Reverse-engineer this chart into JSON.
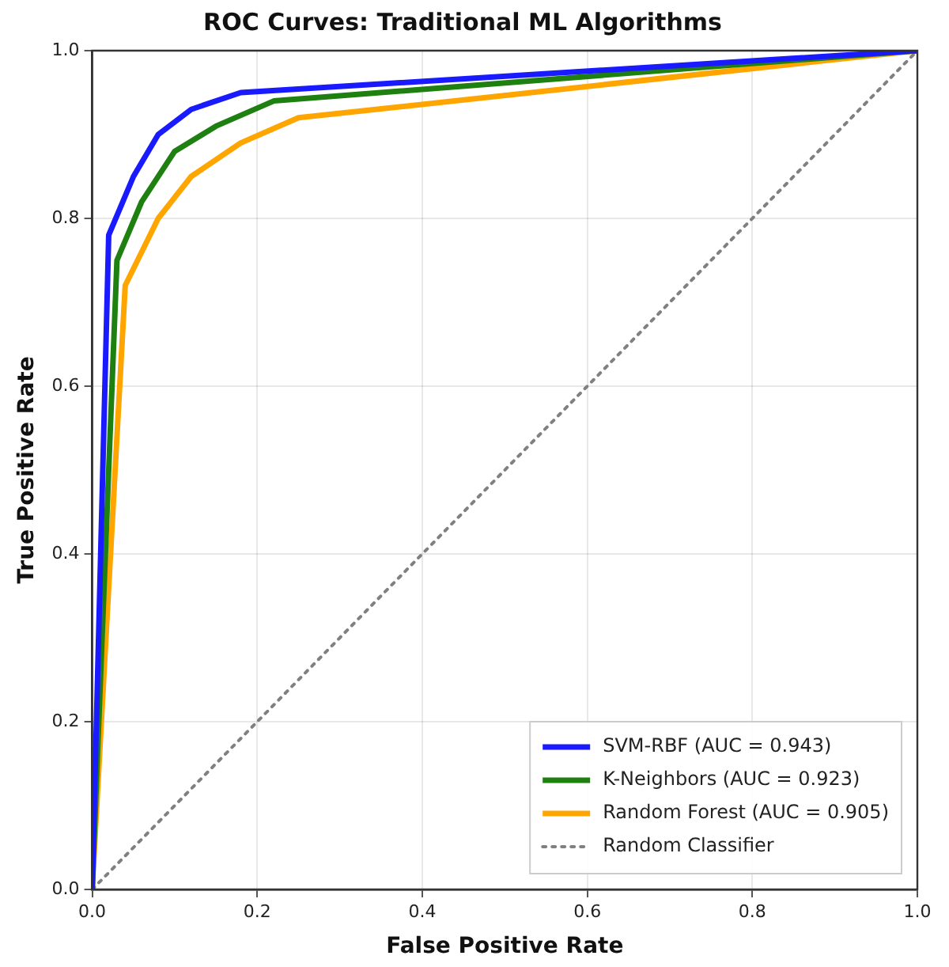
{
  "chart_data": {
    "type": "line",
    "title": "ROC Curves: Traditional ML Algorithms",
    "xlabel": "False Positive Rate",
    "ylabel": "True Positive Rate",
    "xlim": [
      0,
      1
    ],
    "ylim": [
      0,
      1
    ],
    "xticks": [
      {
        "value": 0,
        "label": "0.0"
      },
      0.2,
      0.4,
      0.6,
      0.8,
      {
        "value": 1,
        "label": "1.0"
      }
    ],
    "yticks": [
      {
        "value": 0,
        "label": "0.0"
      },
      0.2,
      0.4,
      0.6,
      0.8,
      {
        "value": 1,
        "label": "1.0"
      }
    ],
    "grid": true,
    "legend": "bottom right",
    "marker": "none",
    "series": [
      {
        "name": "SVM-RBF (AUC = 0.943)",
        "color": "#1a1aff",
        "line_style": "solid",
        "x": [
          0,
          0.02,
          0.05,
          0.08,
          0.12,
          0.18,
          1
        ],
        "values": [
          0,
          0.78,
          0.85,
          0.9,
          0.93,
          0.95,
          1
        ]
      },
      {
        "name": "K-Neighbors (AUC = 0.923)",
        "color": "#1e8010",
        "line_style": "solid",
        "x": [
          0,
          0.03,
          0.06,
          0.1,
          0.15,
          0.22,
          1
        ],
        "values": [
          0,
          0.75,
          0.82,
          0.88,
          0.91,
          0.94,
          1
        ]
      },
      {
        "name": "Random Forest (AUC = 0.905)",
        "color": "#ffa500",
        "line_style": "solid",
        "x": [
          0,
          0.04,
          0.08,
          0.12,
          0.18,
          0.25,
          1
        ],
        "values": [
          0,
          0.72,
          0.8,
          0.85,
          0.89,
          0.92,
          1
        ]
      },
      {
        "name": "Random Classifier",
        "color": "#808080",
        "line_style": "dotted",
        "x": [
          0,
          1
        ],
        "values": [
          0,
          1
        ]
      }
    ]
  }
}
